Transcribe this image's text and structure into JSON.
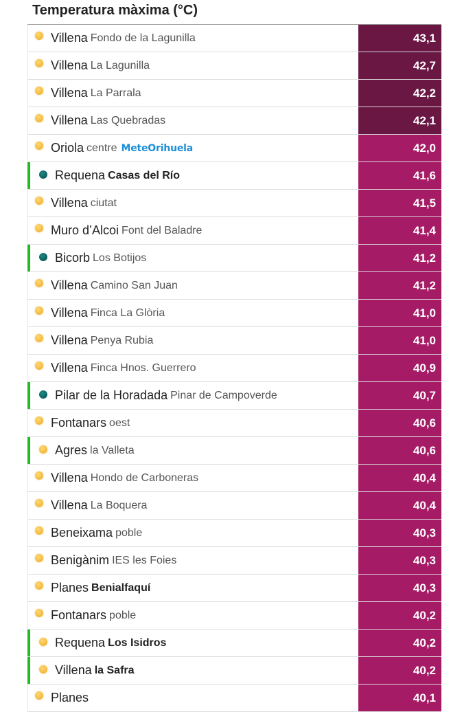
{
  "title": "Temperatura màxima (°C)",
  "colors": {
    "value_dark": "#6a1743",
    "value_normal": "#a51b66",
    "flag_green": "#22bb22",
    "sun_dot": "#f3b73a",
    "teal_dot": "#0b5b59",
    "brand_blue": "#1d8fd6"
  },
  "rows": [
    {
      "town": "Villena",
      "location": "Fondo de la Lagunilla",
      "value": "43,1",
      "dot": "sun",
      "dark": true,
      "flag": false,
      "loc_style": "normal"
    },
    {
      "town": "Villena",
      "location": "La Lagunilla",
      "value": "42,7",
      "dot": "sun",
      "dark": true,
      "flag": false,
      "loc_style": "normal"
    },
    {
      "town": "Villena",
      "location": "La Parrala",
      "value": "42,2",
      "dot": "sun",
      "dark": true,
      "flag": false,
      "loc_style": "normal"
    },
    {
      "town": "Villena",
      "location": "Las Quebradas",
      "value": "42,1",
      "dot": "sun",
      "dark": true,
      "flag": false,
      "loc_style": "normal"
    },
    {
      "town": "Oriola",
      "location": "centre",
      "brand": "MeteOrihuela",
      "value": "42,0",
      "dot": "sun",
      "dark": false,
      "flag": false,
      "loc_style": "normal"
    },
    {
      "town": "Requena",
      "location": "Casas del Río",
      "value": "41,6",
      "dot": "teal",
      "dark": false,
      "flag": true,
      "loc_style": "bold"
    },
    {
      "town": "Villena",
      "location": "ciutat",
      "value": "41,5",
      "dot": "sun",
      "dark": false,
      "flag": false,
      "loc_style": "normal"
    },
    {
      "town": "Muro d’Alcoi",
      "location": "Font del Baladre",
      "value": "41,4",
      "dot": "sun",
      "dark": false,
      "flag": false,
      "loc_style": "normal"
    },
    {
      "town": "Bicorb",
      "location": "Los Botijos",
      "value": "41,2",
      "dot": "teal",
      "dark": false,
      "flag": true,
      "loc_style": "normal"
    },
    {
      "town": "Villena",
      "location": "Camino San Juan",
      "value": "41,2",
      "dot": "sun",
      "dark": false,
      "flag": false,
      "loc_style": "normal"
    },
    {
      "town": "Villena",
      "location": "Finca La Glòria",
      "value": "41,0",
      "dot": "sun",
      "dark": false,
      "flag": false,
      "loc_style": "normal"
    },
    {
      "town": "Villena",
      "location": "Penya Rubia",
      "value": "41,0",
      "dot": "sun",
      "dark": false,
      "flag": false,
      "loc_style": "normal"
    },
    {
      "town": "Villena",
      "location": "Finca Hnos. Guerrero",
      "value": "40,9",
      "dot": "sun",
      "dark": false,
      "flag": false,
      "loc_style": "normal"
    },
    {
      "town": "Pilar de la Horadada",
      "location": "Pinar de Campoverde",
      "value": "40,7",
      "dot": "teal",
      "dark": false,
      "flag": true,
      "loc_style": "normal"
    },
    {
      "town": "Fontanars",
      "location": "oest",
      "value": "40,6",
      "dot": "sun",
      "dark": false,
      "flag": false,
      "loc_style": "normal"
    },
    {
      "town": "Agres",
      "location": "la Valleta",
      "value": "40,6",
      "dot": "sun",
      "dark": false,
      "flag": true,
      "loc_style": "normal"
    },
    {
      "town": "Villena",
      "location": "Hondo de Carboneras",
      "value": "40,4",
      "dot": "sun",
      "dark": false,
      "flag": false,
      "loc_style": "normal"
    },
    {
      "town": "Villena",
      "location": "La Boquera",
      "value": "40,4",
      "dot": "sun",
      "dark": false,
      "flag": false,
      "loc_style": "normal"
    },
    {
      "town": "Beneixama",
      "location": "poble",
      "value": "40,3",
      "dot": "sun",
      "dark": false,
      "flag": false,
      "loc_style": "normal"
    },
    {
      "town": "Benigànim",
      "location": "IES les Foies",
      "value": "40,3",
      "dot": "sun",
      "dark": false,
      "flag": false,
      "loc_style": "normal"
    },
    {
      "town": "Planes",
      "location": "Benialfaquí",
      "value": "40,3",
      "dot": "sun",
      "dark": false,
      "flag": false,
      "loc_style": "bold"
    },
    {
      "town": "Fontanars",
      "location": "poble",
      "value": "40,2",
      "dot": "sun",
      "dark": false,
      "flag": false,
      "loc_style": "normal"
    },
    {
      "town": "Requena",
      "location": "Los Isidros",
      "value": "40,2",
      "dot": "sun",
      "dark": false,
      "flag": true,
      "loc_style": "bold"
    },
    {
      "town": "Villena",
      "location": "la Safra",
      "value": "40,2",
      "dot": "sun",
      "dark": false,
      "flag": true,
      "loc_style": "bold"
    },
    {
      "town": "Planes",
      "location": "",
      "value": "40,1",
      "dot": "sun",
      "dark": false,
      "flag": false,
      "loc_style": "normal"
    }
  ]
}
